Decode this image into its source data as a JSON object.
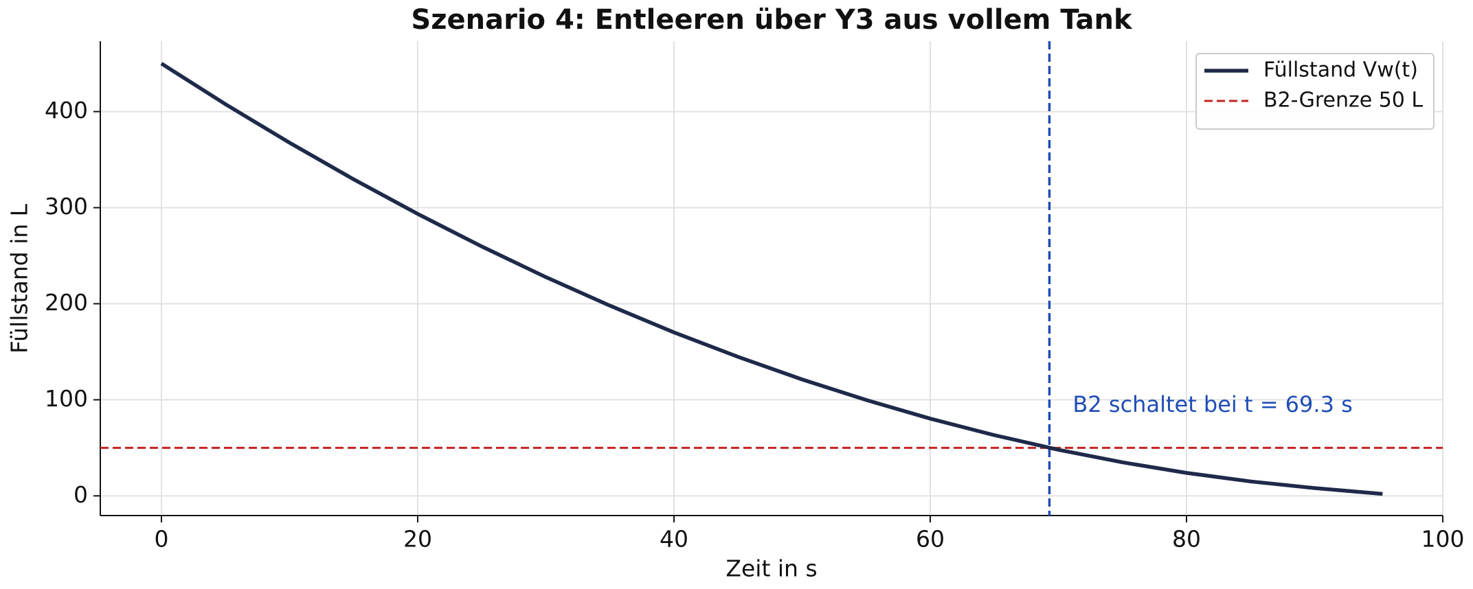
{
  "chart_data": {
    "type": "line",
    "title": "Szenario 4: Entleeren über Y3 aus vollem Tank",
    "xlabel": "Zeit in s",
    "ylabel": "Füllstand in L",
    "x": [
      0,
      5,
      10,
      15,
      20,
      25,
      30,
      35,
      40,
      45,
      50,
      55,
      60,
      65,
      70,
      75,
      80,
      85,
      90,
      95.3
    ],
    "series": [
      {
        "name": "Füllstand Vw(t)",
        "color": "#1f2a4a",
        "values": [
          450,
          407.7,
          367.6,
          329.5,
          293.5,
          259.6,
          227.7,
          198.0,
          170.2,
          144.7,
          121.2,
          99.8,
          80.4,
          63.2,
          48.0,
          34.9,
          23.9,
          15.0,
          8.1,
          2
        ]
      }
    ],
    "hlines": [
      {
        "name": "B2-Grenze 50 L",
        "value": 50,
        "color": "#c4231f"
      }
    ],
    "vlines": [
      {
        "value": 69.3,
        "color": "#1f4db5",
        "annotation": "B2 schaltet bei t = 69.3 s"
      }
    ],
    "xlim": [
      -4.77,
      100
    ],
    "ylim": [
      -20.5,
      473.3
    ],
    "xticks": [
      0,
      20,
      40,
      60,
      80,
      100
    ],
    "yticks": [
      0,
      100,
      200,
      300,
      400
    ],
    "grid": true,
    "legend": "upper right"
  }
}
